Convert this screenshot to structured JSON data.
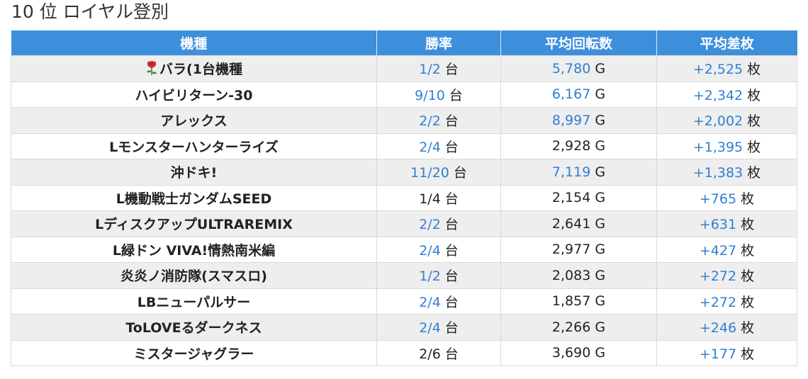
{
  "page": {
    "title": "10 位 ロイヤル登別"
  },
  "table": {
    "headers": [
      "機種",
      "勝率",
      "平均回転数",
      "平均差枚"
    ],
    "rows": [
      {
        "name": "バラ(1台機種",
        "icon": "rose-icon",
        "win_rate": "1/2",
        "win_unit": "台",
        "win_link": true,
        "spins": "5,780",
        "spins_unit": "G",
        "spins_link": true,
        "diff": "+2,525",
        "diff_unit": "枚",
        "diff_link": true
      },
      {
        "name": "ハイビリターン-30",
        "win_rate": "9/10",
        "win_unit": "台",
        "win_link": true,
        "spins": "6,167",
        "spins_unit": "G",
        "spins_link": true,
        "diff": "+2,342",
        "diff_unit": "枚",
        "diff_link": true
      },
      {
        "name": "アレックス",
        "win_rate": "2/2",
        "win_unit": "台",
        "win_link": true,
        "spins": "8,997",
        "spins_unit": "G",
        "spins_link": true,
        "diff": "+2,002",
        "diff_unit": "枚",
        "diff_link": true
      },
      {
        "name": "Lモンスターハンターライズ",
        "win_rate": "2/4",
        "win_unit": "台",
        "win_link": true,
        "spins": "2,928",
        "spins_unit": "G",
        "spins_link": false,
        "diff": "+1,395",
        "diff_unit": "枚",
        "diff_link": true
      },
      {
        "name": "沖ドキ!",
        "win_rate": "11/20",
        "win_unit": "台",
        "win_link": true,
        "spins": "7,119",
        "spins_unit": "G",
        "spins_link": true,
        "diff": "+1,383",
        "diff_unit": "枚",
        "diff_link": true
      },
      {
        "name": "L機動戦士ガンダムSEED",
        "win_rate": "1/4",
        "win_unit": "台",
        "win_link": false,
        "spins": "2,154",
        "spins_unit": "G",
        "spins_link": false,
        "diff": "+765",
        "diff_unit": "枚",
        "diff_link": true
      },
      {
        "name": "LディスクアップULTRAREMIX",
        "win_rate": "2/2",
        "win_unit": "台",
        "win_link": true,
        "spins": "2,641",
        "spins_unit": "G",
        "spins_link": false,
        "diff": "+631",
        "diff_unit": "枚",
        "diff_link": true
      },
      {
        "name": "L緑ドン VIVA!情熱南米編",
        "win_rate": "2/4",
        "win_unit": "台",
        "win_link": true,
        "spins": "2,977",
        "spins_unit": "G",
        "spins_link": false,
        "diff": "+427",
        "diff_unit": "枚",
        "diff_link": true
      },
      {
        "name": "炎炎ノ消防隊(スマスロ)",
        "win_rate": "1/2",
        "win_unit": "台",
        "win_link": true,
        "spins": "2,083",
        "spins_unit": "G",
        "spins_link": false,
        "diff": "+272",
        "diff_unit": "枚",
        "diff_link": true
      },
      {
        "name": "LBニューパルサー",
        "win_rate": "2/4",
        "win_unit": "台",
        "win_link": true,
        "spins": "1,857",
        "spins_unit": "G",
        "spins_link": false,
        "diff": "+272",
        "diff_unit": "枚",
        "diff_link": true
      },
      {
        "name": "ToLOVEるダークネス",
        "win_rate": "2/4",
        "win_unit": "台",
        "win_link": true,
        "spins": "2,266",
        "spins_unit": "G",
        "spins_link": false,
        "diff": "+246",
        "diff_unit": "枚",
        "diff_link": true
      },
      {
        "name": "ミスタージャグラー",
        "win_rate": "2/6",
        "win_unit": "台",
        "win_link": false,
        "spins": "3,690",
        "spins_unit": "G",
        "spins_link": false,
        "diff": "+177",
        "diff_unit": "枚",
        "diff_link": true
      }
    ]
  },
  "colors": {
    "header_bg": "#3d8fdc",
    "link": "#2f80d1",
    "row_alt": "#eeeeee",
    "rose_red": "#d42a2a",
    "rose_leaf": "#3e8e3a"
  }
}
